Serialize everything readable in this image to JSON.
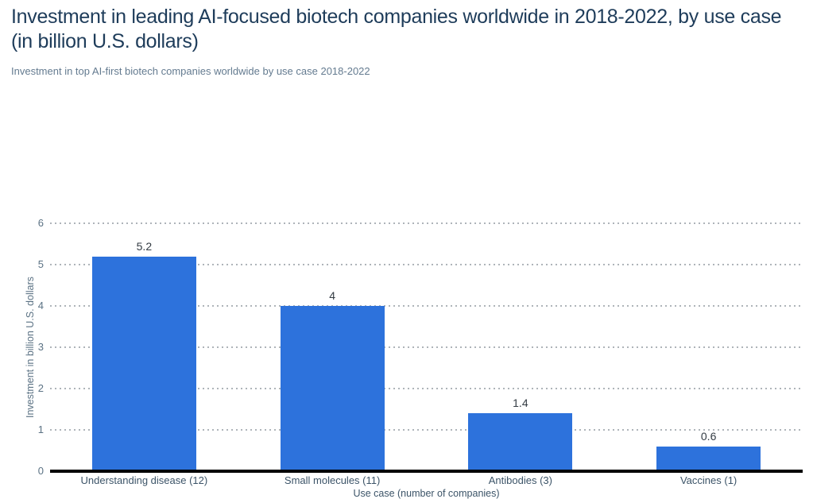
{
  "header": {
    "title": "Investment in leading AI-focused biotech companies worldwide in 2018-2022, by use case (in billion U.S. dollars)",
    "subtitle": "Investment in top AI-first biotech companies worldwide by use case 2018-2022"
  },
  "chart_data": {
    "type": "bar",
    "title": "Investment in leading AI-focused biotech companies worldwide in 2018-2022, by use case (in billion U.S. dollars)",
    "subtitle": "Investment in top AI-first biotech companies worldwide by use case 2018-2022",
    "categories": [
      "Understanding disease (12)",
      "Small molecules (11)",
      "Antibodies (3)",
      "Vaccines (1)"
    ],
    "values": [
      5.2,
      4,
      1.4,
      0.6
    ],
    "value_labels": [
      "5.2",
      "4",
      "1.4",
      "0.6"
    ],
    "xlabel": "Use case (number of companies)",
    "ylabel": "Investment in billion U.S. dollars",
    "ylim": [
      0,
      6
    ],
    "yticks": [
      0,
      1,
      2,
      3,
      4,
      5,
      6
    ],
    "grid": "horizontal-dotted",
    "legend": "none",
    "bar_color": "#2d72dc"
  },
  "colors": {
    "title": "#1e3c5a",
    "subtitle": "#647b90",
    "tick_label": "#5b7284",
    "axis_title": "#3c5468",
    "value_label": "#333b43",
    "bar": "#2d72dc",
    "gridline": "#aeb4b9",
    "baseline": "#000000"
  }
}
